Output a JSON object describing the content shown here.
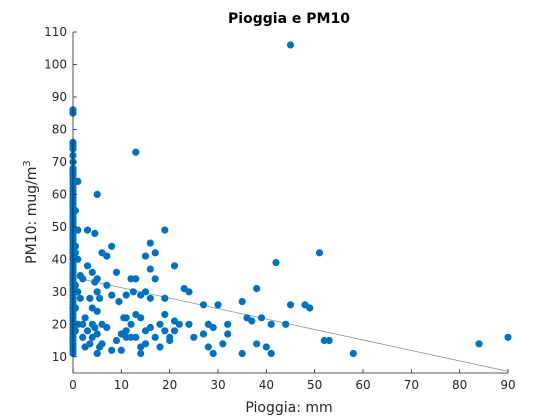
{
  "chart_data": {
    "type": "scatter",
    "title": "Pioggia e PM10",
    "xlabel": "Pioggia: mm",
    "ylabel_base": "PM10: mug/m",
    "ylabel_sup": "3",
    "xlim": [
      0,
      90
    ],
    "ylim": [
      5,
      110
    ],
    "xticks": [
      0,
      10,
      20,
      30,
      40,
      50,
      60,
      70,
      80,
      90
    ],
    "yticks": [
      10,
      20,
      30,
      40,
      50,
      60,
      70,
      80,
      90,
      100,
      110
    ],
    "grid": false,
    "marker_color": "#0072BD",
    "fit_line_color": "#8c8c8c",
    "fit_line": {
      "x": [
        0,
        90
      ],
      "y": [
        34.5,
        5.5
      ]
    },
    "points": [
      [
        0,
        86
      ],
      [
        0,
        85
      ],
      [
        0,
        76
      ],
      [
        0,
        75
      ],
      [
        0,
        74
      ],
      [
        0,
        72
      ],
      [
        0,
        70
      ],
      [
        0,
        68
      ],
      [
        0,
        67
      ],
      [
        0,
        66
      ],
      [
        0,
        65
      ],
      [
        0,
        64
      ],
      [
        0,
        63
      ],
      [
        0,
        62
      ],
      [
        0,
        61
      ],
      [
        0,
        60
      ],
      [
        0,
        59
      ],
      [
        0,
        58
      ],
      [
        0,
        57
      ],
      [
        0,
        56
      ],
      [
        0,
        55
      ],
      [
        0,
        54
      ],
      [
        0,
        53
      ],
      [
        0,
        52
      ],
      [
        0,
        51
      ],
      [
        0,
        50
      ],
      [
        0,
        49
      ],
      [
        0,
        48
      ],
      [
        0,
        47
      ],
      [
        0,
        46
      ],
      [
        0,
        45
      ],
      [
        0,
        44
      ],
      [
        0,
        43
      ],
      [
        0,
        42
      ],
      [
        0,
        41
      ],
      [
        0,
        40
      ],
      [
        0,
        39
      ],
      [
        0,
        38
      ],
      [
        0,
        37
      ],
      [
        0,
        36
      ],
      [
        0,
        35
      ],
      [
        0,
        34
      ],
      [
        0,
        33
      ],
      [
        0,
        32
      ],
      [
        0,
        31
      ],
      [
        0,
        30
      ],
      [
        0,
        29
      ],
      [
        0,
        28
      ],
      [
        0,
        27
      ],
      [
        0,
        26
      ],
      [
        0,
        25
      ],
      [
        0,
        24
      ],
      [
        0,
        23
      ],
      [
        0,
        22
      ],
      [
        0,
        21
      ],
      [
        0,
        20
      ],
      [
        0,
        19
      ],
      [
        0,
        18
      ],
      [
        0,
        17
      ],
      [
        0,
        16
      ],
      [
        0,
        15
      ],
      [
        0,
        14
      ],
      [
        0,
        13
      ],
      [
        0,
        12
      ],
      [
        0,
        11
      ],
      [
        0.5,
        64
      ],
      [
        0.5,
        55
      ],
      [
        0.5,
        44
      ],
      [
        0.5,
        42
      ],
      [
        0.5,
        32
      ],
      [
        0.5,
        25
      ],
      [
        0.5,
        18
      ],
      [
        1,
        64
      ],
      [
        1,
        49
      ],
      [
        1,
        40
      ],
      [
        1,
        30
      ],
      [
        1,
        20
      ],
      [
        1.5,
        35
      ],
      [
        1.5,
        28
      ],
      [
        2,
        34
      ],
      [
        2,
        20
      ],
      [
        2,
        16
      ],
      [
        2.5,
        22
      ],
      [
        2.5,
        13
      ],
      [
        3,
        49
      ],
      [
        3,
        38
      ],
      [
        3,
        18
      ],
      [
        3.5,
        28
      ],
      [
        3.5,
        14
      ],
      [
        4,
        36
      ],
      [
        4,
        25
      ],
      [
        4,
        20
      ],
      [
        4,
        16
      ],
      [
        4.5,
        48
      ],
      [
        4.5,
        33
      ],
      [
        4.5,
        19
      ],
      [
        5,
        60
      ],
      [
        5,
        34
      ],
      [
        5,
        30
      ],
      [
        5,
        24
      ],
      [
        5,
        17
      ],
      [
        5,
        11
      ],
      [
        5.5,
        28
      ],
      [
        5.5,
        13
      ],
      [
        6,
        42
      ],
      [
        6,
        20
      ],
      [
        6,
        14
      ],
      [
        7,
        41
      ],
      [
        7,
        32
      ],
      [
        7,
        19
      ],
      [
        8,
        44
      ],
      [
        8,
        29
      ],
      [
        8,
        12
      ],
      [
        9,
        36
      ],
      [
        9,
        15
      ],
      [
        9.5,
        27
      ],
      [
        10,
        17
      ],
      [
        10,
        12
      ],
      [
        10.5,
        22
      ],
      [
        11,
        29
      ],
      [
        11,
        22
      ],
      [
        11,
        18
      ],
      [
        11,
        16
      ],
      [
        12,
        34
      ],
      [
        12,
        20
      ],
      [
        12,
        16
      ],
      [
        12.5,
        30
      ],
      [
        13,
        34
      ],
      [
        13,
        23
      ],
      [
        13,
        16
      ],
      [
        13,
        73
      ],
      [
        14,
        22
      ],
      [
        14,
        29
      ],
      [
        14,
        13
      ],
      [
        14,
        11
      ],
      [
        15,
        41
      ],
      [
        15,
        30
      ],
      [
        15,
        18
      ],
      [
        15,
        14
      ],
      [
        16,
        45
      ],
      [
        16,
        37
      ],
      [
        16,
        28
      ],
      [
        16,
        19
      ],
      [
        17,
        42
      ],
      [
        17,
        34
      ],
      [
        17,
        16
      ],
      [
        18,
        20
      ],
      [
        18,
        13
      ],
      [
        19,
        49
      ],
      [
        19,
        28
      ],
      [
        19,
        23
      ],
      [
        19,
        18
      ],
      [
        20,
        15
      ],
      [
        20,
        16
      ],
      [
        21,
        38
      ],
      [
        21,
        21
      ],
      [
        21,
        18
      ],
      [
        22,
        20
      ],
      [
        23,
        31
      ],
      [
        24,
        20
      ],
      [
        24,
        30
      ],
      [
        25,
        16
      ],
      [
        27,
        26
      ],
      [
        27,
        17
      ],
      [
        28,
        20
      ],
      [
        28,
        13
      ],
      [
        29,
        19
      ],
      [
        29,
        11
      ],
      [
        30,
        26
      ],
      [
        31,
        14
      ],
      [
        32,
        17
      ],
      [
        32,
        20
      ],
      [
        35,
        27
      ],
      [
        35,
        11
      ],
      [
        36,
        22
      ],
      [
        37,
        21
      ],
      [
        38,
        14
      ],
      [
        38,
        31
      ],
      [
        39,
        22
      ],
      [
        40,
        13
      ],
      [
        41,
        11
      ],
      [
        41,
        20
      ],
      [
        42,
        39
      ],
      [
        44,
        20
      ],
      [
        45,
        106
      ],
      [
        45,
        26
      ],
      [
        48,
        26
      ],
      [
        49,
        25
      ],
      [
        51,
        42
      ],
      [
        52,
        15
      ],
      [
        53,
        15
      ],
      [
        58,
        11
      ],
      [
        84,
        14
      ],
      [
        90,
        16
      ]
    ]
  }
}
